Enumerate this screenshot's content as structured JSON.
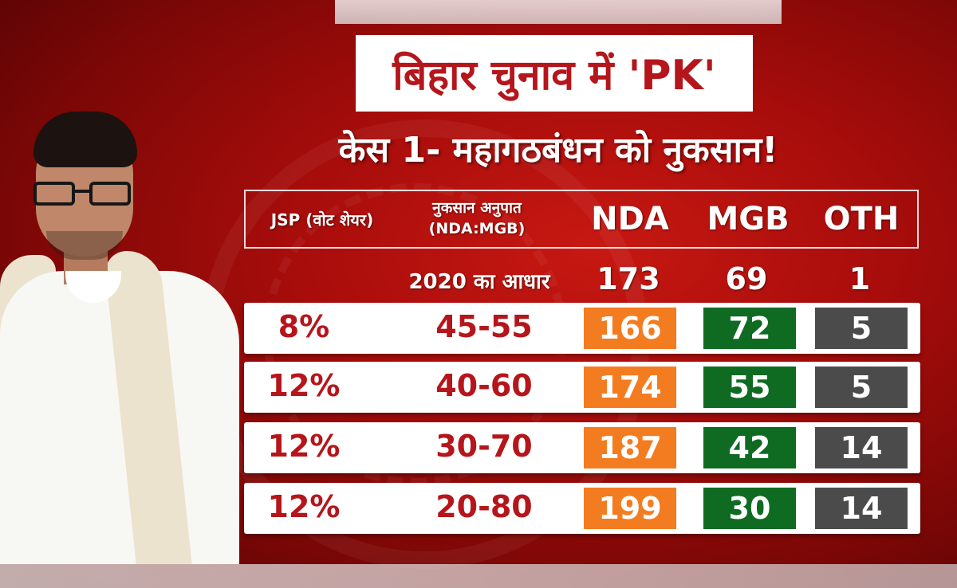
{
  "title": "बिहार चुनाव में 'PK'",
  "subtitle": "केस 1- महागठबंधन को नुकसान!",
  "colors": {
    "title_red": "#b5161b",
    "nda_orange": "#f47c20",
    "mgb_green": "#0f6b22",
    "oth_gray": "#4b4b4b"
  },
  "table": {
    "headers": {
      "jsp": "JSP (वोट शेयर)",
      "ratio_line1": "नुकसान अनुपात",
      "ratio_line2": "(NDA:MGB)",
      "nda": "NDA",
      "mgb": "MGB",
      "oth": "OTH"
    },
    "baseline": {
      "label": "2020 का आधार",
      "nda": "173",
      "mgb": "69",
      "oth": "1"
    },
    "rows": [
      {
        "jsp": "8%",
        "ratio": "45-55",
        "nda": "166",
        "mgb": "72",
        "oth": "5"
      },
      {
        "jsp": "12%",
        "ratio": "40-60",
        "nda": "174",
        "mgb": "55",
        "oth": "5"
      },
      {
        "jsp": "12%",
        "ratio": "30-70",
        "nda": "187",
        "mgb": "42",
        "oth": "14"
      },
      {
        "jsp": "12%",
        "ratio": "20-80",
        "nda": "199",
        "mgb": "30",
        "oth": "14"
      }
    ]
  }
}
